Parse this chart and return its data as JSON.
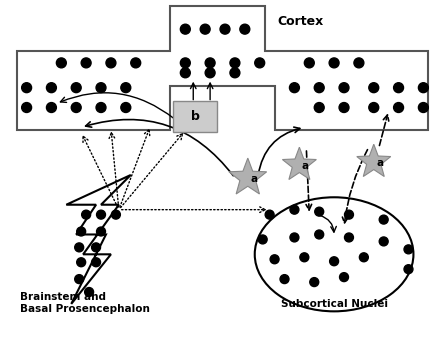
{
  "background_color": "#ffffff",
  "cortex_label": "Cortex",
  "brainstem_label": "Brainstem and\nBasal Prosencephalon",
  "subcortical_label": "Subcortical Nuclei",
  "label_b": "b",
  "label_a": "a"
}
